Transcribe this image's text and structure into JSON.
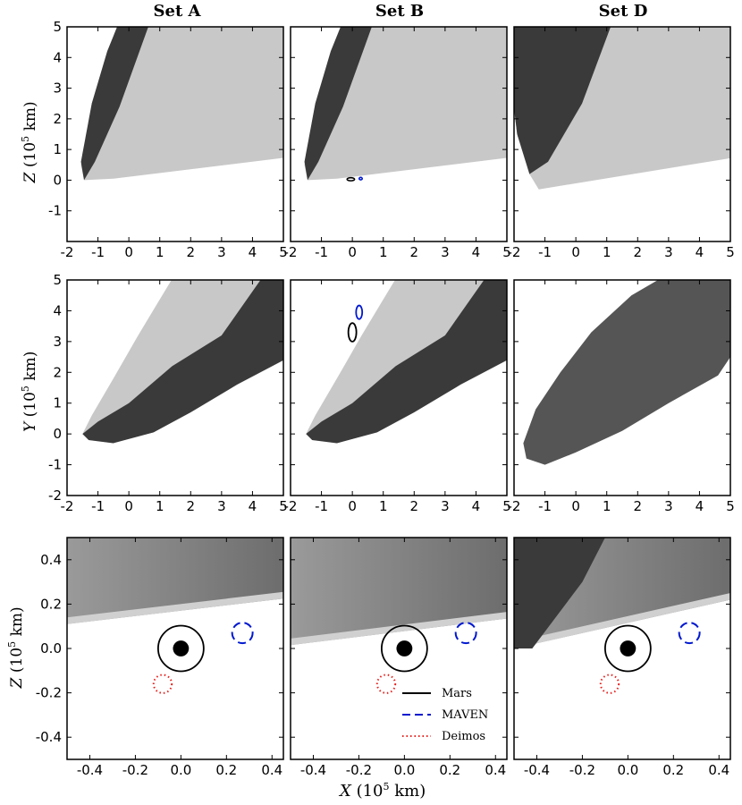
{
  "figure": {
    "columns": [
      "Set A",
      "Set B",
      "Set D"
    ],
    "row_ylabels": [
      {
        "axis": "Z",
        "unit": "(10",
        "exp": "5",
        "tail": " km)"
      },
      {
        "axis": "Y",
        "unit": "(10",
        "exp": "5",
        "tail": " km)"
      },
      {
        "axis": "Z",
        "unit": "(10",
        "exp": "5",
        "tail": " km)"
      }
    ],
    "xlabel": {
      "axis": "X",
      "unit": "(10",
      "exp": "5",
      "tail": " km)"
    }
  },
  "colors": {
    "mars": "#000000",
    "maven": "#0018d0",
    "deimos": "#e8201c",
    "density_light": "#c8c8c8",
    "density_mid": "#8e8e8e",
    "density_dark": "#3a3a3a"
  },
  "chart_data": [
    {
      "type": "heatmap",
      "panel": "row1",
      "plane": "X-Z",
      "xlim": [
        -2,
        5
      ],
      "ylim": [
        -2,
        5
      ],
      "xticks": [
        "-2",
        "-1",
        "0",
        "1",
        "2",
        "3",
        "4",
        "5"
      ],
      "yticks": [
        "-1",
        "0",
        "1",
        "2",
        "3",
        "4",
        "5"
      ],
      "overlay_panels": [
        "Set B"
      ],
      "overlays": [
        {
          "name": "Mars",
          "x": -0.05,
          "y": 0.03,
          "rx": 0.12,
          "ry": 0.05
        },
        {
          "name": "MAVEN",
          "x": 0.27,
          "y": 0.05,
          "rx": 0.05,
          "ry": 0.04
        }
      ]
    },
    {
      "type": "heatmap",
      "panel": "row2",
      "plane": "X-Y",
      "xlim": [
        -2,
        5
      ],
      "ylim": [
        -2,
        5
      ],
      "xticks": [
        "-2",
        "-1",
        "0",
        "1",
        "2",
        "3",
        "4",
        "5"
      ],
      "yticks": [
        "-2",
        "-1",
        "0",
        "1",
        "2",
        "3",
        "4",
        "5"
      ],
      "overlay_panels": [
        "Set B"
      ],
      "overlays": [
        {
          "name": "Mars",
          "x": 0.0,
          "y": 3.3,
          "rx": 0.13,
          "ry": 0.3
        },
        {
          "name": "MAVEN",
          "x": 0.22,
          "y": 3.95,
          "rx": 0.1,
          "ry": 0.22
        }
      ]
    },
    {
      "type": "heatmap",
      "panel": "row3",
      "plane": "X-Z zoom",
      "xlim": [
        -0.5,
        0.45
      ],
      "ylim": [
        -0.5,
        0.5
      ],
      "xticks": [
        "-0.4",
        "-0.2",
        "0.0",
        "0.2",
        "0.4"
      ],
      "yticks": [
        "-0.4",
        "-0.2",
        "0.0",
        "0.2",
        "0.4"
      ],
      "cutoff_z": {
        "Set A": [
          0.11,
          0.225
        ],
        "Set B": [
          0.015,
          0.135
        ],
        "Set D": [
          0.0,
          0.22
        ]
      },
      "overlays": [
        {
          "name": "Mars",
          "x": 0.0,
          "y": 0.0,
          "r": 0.1,
          "style": "solid"
        },
        {
          "name": "Mars core",
          "x": 0.0,
          "y": 0.0,
          "r": 0.035,
          "style": "filled"
        },
        {
          "name": "MAVEN",
          "x": 0.27,
          "y": 0.07,
          "r": 0.045,
          "style": "dashed"
        },
        {
          "name": "Deimos",
          "x": -0.08,
          "y": -0.16,
          "r": 0.04,
          "style": "dotted"
        }
      ],
      "legend": {
        "panel": "Set B",
        "placement": "lower-right",
        "entries": [
          "Mars",
          "MAVEN",
          "Deimos"
        ]
      }
    }
  ]
}
